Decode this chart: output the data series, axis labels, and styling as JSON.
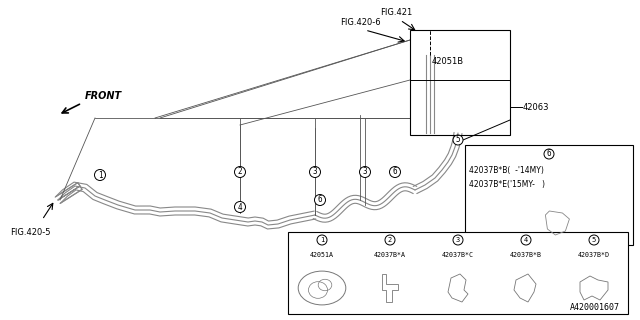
{
  "bg_color": "#ffffff",
  "fig_width": 6.4,
  "fig_height": 3.2,
  "parts_table1_cols": [
    {
      "num": "1",
      "label": "42051A"
    },
    {
      "num": "2",
      "label": "42037B*A"
    },
    {
      "num": "3",
      "label": "42037B*C"
    },
    {
      "num": "4",
      "label": "42037B*B"
    },
    {
      "num": "5",
      "label": "42037B*D"
    }
  ],
  "parts_table2_line1": "42037B*B(  -'14MY)",
  "parts_table2_line2": "42037B*E('15MY-   )",
  "parts_table2_num": "6",
  "ref_label": "A420001607",
  "fig421": "FIG.421",
  "fig4206": "FIG.420-6",
  "fig4205": "FIG.420-5",
  "label_42051B": "42051B",
  "label_42063": "42063",
  "front_label": "FRONT",
  "pipe_color": "#888888",
  "line_color": "#000000",
  "leader_color": "#555555"
}
